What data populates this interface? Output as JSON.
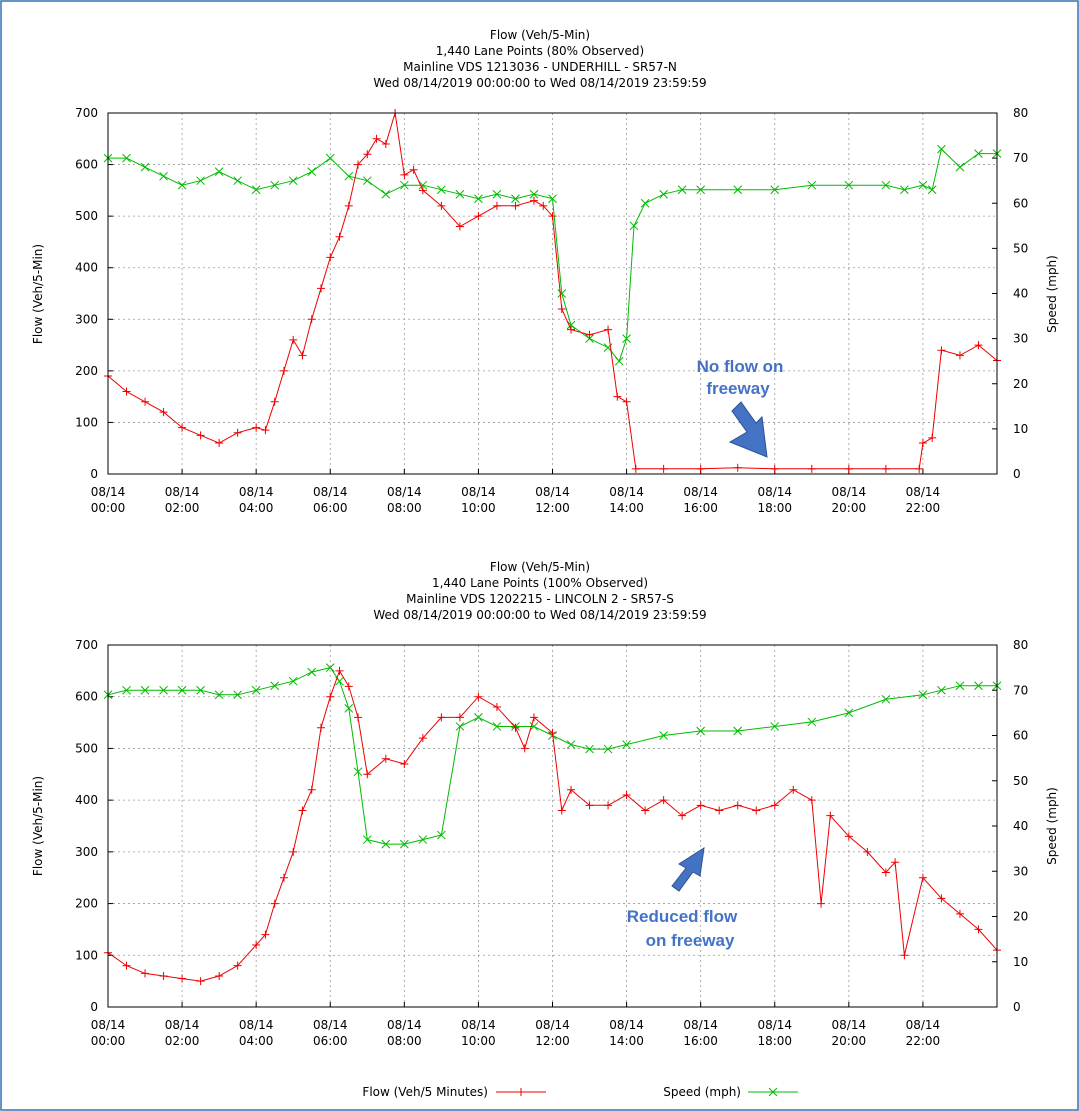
{
  "charts": [
    {
      "title_lines": [
        "Flow (Veh/5-Min)",
        "1,440 Lane Points (80% Observed)",
        "Mainline VDS 1213036 - UNDERHILL - SR57-N",
        "Wed 08/14/2019 00:00:00 to Wed 08/14/2019 23:59:59"
      ],
      "ylabel_left": "Flow (Veh/5-Min)",
      "ylabel_right": "Speed (mph)",
      "yticks_left": [
        "0",
        "100",
        "200",
        "300",
        "400",
        "500",
        "600",
        "700"
      ],
      "yticks_right": [
        "0",
        "10",
        "20",
        "30",
        "40",
        "50",
        "60",
        "70",
        "80"
      ],
      "xticks": [
        {
          "date": "08/14",
          "time": "00:00"
        },
        {
          "date": "08/14",
          "time": "02:00"
        },
        {
          "date": "08/14",
          "time": "04:00"
        },
        {
          "date": "08/14",
          "time": "06:00"
        },
        {
          "date": "08/14",
          "time": "08:00"
        },
        {
          "date": "08/14",
          "time": "10:00"
        },
        {
          "date": "08/14",
          "time": "12:00"
        },
        {
          "date": "08/14",
          "time": "14:00"
        },
        {
          "date": "08/14",
          "time": "16:00"
        },
        {
          "date": "08/14",
          "time": "18:00"
        },
        {
          "date": "08/14",
          "time": "20:00"
        },
        {
          "date": "08/14",
          "time": "22:00"
        }
      ],
      "annotation": [
        "No flow on",
        "freeway"
      ]
    },
    {
      "title_lines": [
        "Flow (Veh/5-Min)",
        "1,440 Lane Points (100% Observed)",
        "Mainline VDS 1202215 - LINCOLN 2 - SR57-S",
        "Wed 08/14/2019 00:00:00 to Wed 08/14/2019 23:59:59"
      ],
      "ylabel_left": "Flow (Veh/5-Min)",
      "ylabel_right": "Speed (mph)",
      "yticks_left": [
        "0",
        "100",
        "200",
        "300",
        "400",
        "500",
        "600",
        "700"
      ],
      "yticks_right": [
        "0",
        "10",
        "20",
        "30",
        "40",
        "50",
        "60",
        "70",
        "80"
      ],
      "xticks": [
        {
          "date": "08/14",
          "time": "00:00"
        },
        {
          "date": "08/14",
          "time": "02:00"
        },
        {
          "date": "08/14",
          "time": "04:00"
        },
        {
          "date": "08/14",
          "time": "06:00"
        },
        {
          "date": "08/14",
          "time": "08:00"
        },
        {
          "date": "08/14",
          "time": "10:00"
        },
        {
          "date": "08/14",
          "time": "12:00"
        },
        {
          "date": "08/14",
          "time": "14:00"
        },
        {
          "date": "08/14",
          "time": "16:00"
        },
        {
          "date": "08/14",
          "time": "18:00"
        },
        {
          "date": "08/14",
          "time": "20:00"
        },
        {
          "date": "08/14",
          "time": "22:00"
        }
      ],
      "annotation": [
        "Reduced flow",
        "on freeway"
      ]
    }
  ],
  "legend": {
    "flow_label": "Flow (Veh/5 Minutes)",
    "speed_label": "Speed (mph)"
  },
  "colors": {
    "flow": "#ee0000",
    "speed": "#00bb00",
    "annotation": "#4472C4",
    "frame": "#2e74b5"
  },
  "chart_data": [
    {
      "type": "line",
      "x_unit": "hour of day (08/14/2019)",
      "xlim": [
        0,
        24
      ],
      "ylim_left": [
        0,
        700
      ],
      "ylim_right": [
        0,
        80
      ],
      "grid": true,
      "series": [
        {
          "name": "Flow (Veh/5 Minutes)",
          "axis": "left",
          "x": [
            0,
            0.5,
            1,
            1.5,
            2,
            2.5,
            3,
            3.5,
            4,
            4.25,
            4.5,
            4.75,
            5,
            5.25,
            5.5,
            5.75,
            6,
            6.25,
            6.5,
            6.75,
            7,
            7.25,
            7.5,
            7.75,
            8,
            8.25,
            8.5,
            9,
            9.5,
            10,
            10.5,
            11,
            11.5,
            11.75,
            12,
            12.25,
            12.5,
            13,
            13.5,
            13.75,
            14,
            14.25,
            15,
            16,
            17,
            18,
            19,
            20,
            21,
            21.9,
            22,
            22.25,
            22.5,
            23,
            23.5,
            24
          ],
          "values": [
            190,
            160,
            140,
            120,
            90,
            75,
            60,
            80,
            90,
            85,
            140,
            200,
            260,
            230,
            300,
            360,
            420,
            460,
            520,
            600,
            620,
            650,
            640,
            700,
            580,
            590,
            550,
            520,
            480,
            500,
            520,
            520,
            530,
            520,
            500,
            320,
            280,
            270,
            280,
            150,
            140,
            10,
            10,
            10,
            12,
            10,
            10,
            10,
            10,
            10,
            60,
            70,
            240,
            230,
            250,
            220
          ]
        },
        {
          "name": "Speed (mph)",
          "axis": "right",
          "x": [
            0,
            0.5,
            1,
            1.5,
            2,
            2.5,
            3,
            3.5,
            4,
            4.5,
            5,
            5.5,
            6,
            6.5,
            7,
            7.5,
            8,
            8.5,
            9,
            9.5,
            10,
            10.5,
            11,
            11.5,
            12,
            12.25,
            12.5,
            13,
            13.5,
            13.8,
            14,
            14.2,
            14.5,
            15,
            15.5,
            16,
            17,
            18,
            19,
            20,
            21,
            21.5,
            22,
            22.25,
            22.5,
            23,
            23.5,
            24
          ],
          "values": [
            70,
            70,
            68,
            66,
            64,
            65,
            67,
            65,
            63,
            64,
            65,
            67,
            70,
            66,
            65,
            62,
            64,
            64,
            63,
            62,
            61,
            62,
            61,
            62,
            61,
            40,
            33,
            30,
            28,
            25,
            30,
            55,
            60,
            62,
            63,
            63,
            63,
            63,
            64,
            64,
            64,
            63,
            64,
            63,
            72,
            68,
            71,
            71
          ]
        }
      ]
    },
    {
      "type": "line",
      "x_unit": "hour of day (08/14/2019)",
      "xlim": [
        0,
        24
      ],
      "ylim_left": [
        0,
        700
      ],
      "ylim_right": [
        0,
        80
      ],
      "grid": true,
      "series": [
        {
          "name": "Flow (Veh/5 Minutes)",
          "axis": "left",
          "x": [
            0,
            0.5,
            1,
            1.5,
            2,
            2.5,
            3,
            3.5,
            4,
            4.25,
            4.5,
            4.75,
            5,
            5.25,
            5.5,
            5.75,
            6,
            6.25,
            6.5,
            6.75,
            7,
            7.5,
            8,
            8.5,
            9,
            9.5,
            10,
            10.5,
            11,
            11.25,
            11.5,
            12,
            12.25,
            12.5,
            13,
            13.5,
            14,
            14.5,
            15,
            15.5,
            16,
            16.5,
            17,
            17.5,
            18,
            18.5,
            19,
            19.25,
            19.5,
            20,
            20.5,
            21,
            21.25,
            21.5,
            22,
            22.5,
            23,
            23.5,
            24
          ],
          "values": [
            105,
            80,
            65,
            60,
            55,
            50,
            60,
            80,
            120,
            140,
            200,
            250,
            300,
            380,
            420,
            540,
            600,
            650,
            620,
            560,
            450,
            480,
            470,
            520,
            560,
            560,
            600,
            580,
            540,
            500,
            560,
            530,
            380,
            420,
            390,
            390,
            410,
            380,
            400,
            370,
            390,
            380,
            390,
            380,
            390,
            420,
            400,
            200,
            370,
            330,
            300,
            260,
            280,
            100,
            250,
            210,
            180,
            150,
            110
          ]
        },
        {
          "name": "Speed (mph)",
          "axis": "right",
          "x": [
            0,
            0.5,
            1,
            1.5,
            2,
            2.5,
            3,
            3.5,
            4,
            4.5,
            5,
            5.5,
            6,
            6.25,
            6.5,
            6.75,
            7,
            7.5,
            8,
            8.5,
            9,
            9.5,
            10,
            10.5,
            11,
            11.5,
            12,
            12.5,
            13,
            13.5,
            14,
            15,
            16,
            17,
            18,
            19,
            20,
            21,
            22,
            22.5,
            23,
            23.5,
            24
          ],
          "values": [
            69,
            70,
            70,
            70,
            70,
            70,
            69,
            69,
            70,
            71,
            72,
            74,
            75,
            72,
            66,
            52,
            37,
            36,
            36,
            37,
            38,
            62,
            64,
            62,
            62,
            62,
            60,
            58,
            57,
            57,
            58,
            60,
            61,
            61,
            62,
            63,
            65,
            68,
            69,
            70,
            71,
            71,
            71
          ]
        }
      ]
    }
  ]
}
